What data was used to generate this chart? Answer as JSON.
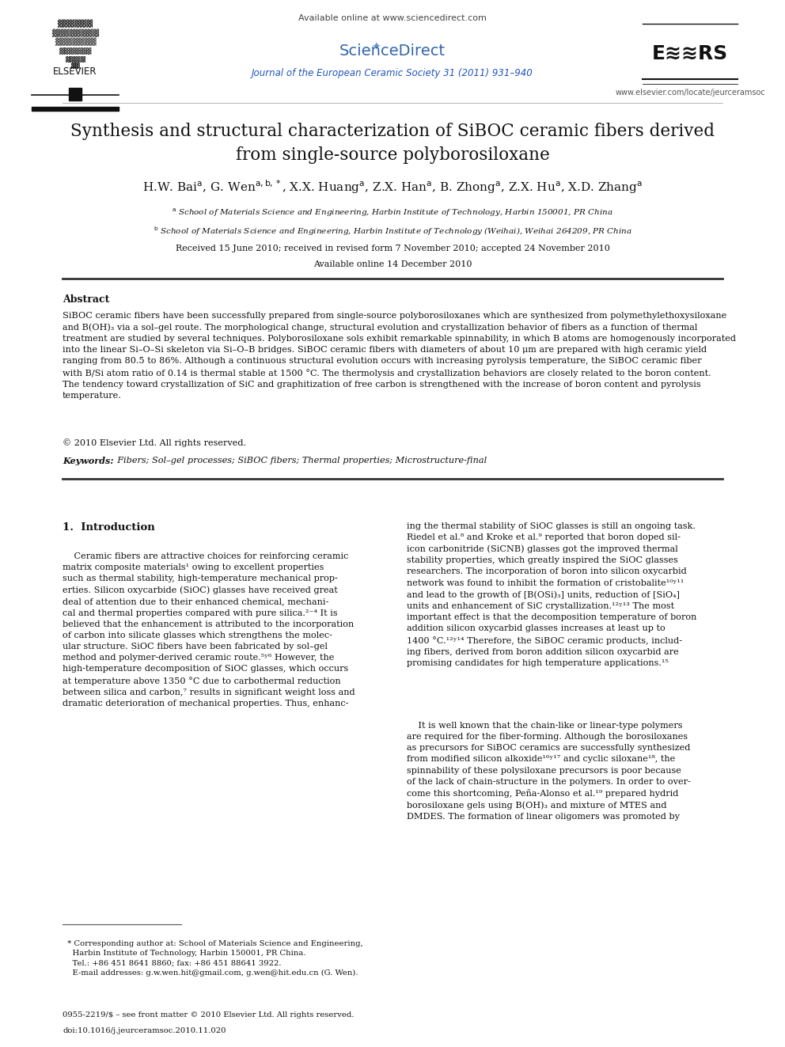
{
  "page_width": 9.92,
  "page_height": 13.23,
  "background_color": "#ffffff",
  "header": {
    "available_online": "Available online at www.sciencedirect.com",
    "journal_line": "Journal of the European Ceramic Society 31 (2011) 931–940",
    "journal_color": "#2255bb",
    "website": "www.elsevier.com/locate/jeurceramsoc",
    "website_color": "#555555"
  },
  "title": "Synthesis and structural characterization of SiBOC ceramic fibers derived\nfrom single-source polyborosiloxane",
  "received": "Received 15 June 2010; received in revised form 7 November 2010; accepted 24 November 2010",
  "available": "Available online 14 December 2010",
  "abstract_title": "Abstract",
  "copyright": "© 2010 Elsevier Ltd. All rights reserved.",
  "keywords_label": "Keywords:",
  "keywords_text": "  Fibers; Sol–gel processes; SiBOC fibers; Thermal properties; Microstructure-final",
  "section1_title": "1.  Introduction",
  "footnote_line1": "* Corresponding author at: School of Materials Science and Engineering,",
  "footnote_line2": "  Harbin Institute of Technology, Harbin 150001, PR China.",
  "footnote_line3": "  Tel.: +86 451 8641 8860; fax: +86 451 88641 3922.",
  "footnote_line4": "  E-mail addresses: g.w.wen.hit@gmail.com, g.wen@hit.edu.cn (G. Wen).",
  "bottom_line1": "0955-2219/$ – see front matter © 2010 Elsevier Ltd. All rights reserved.",
  "bottom_line2": "doi:10.1016/j.jeurceramsoc.2010.11.020"
}
